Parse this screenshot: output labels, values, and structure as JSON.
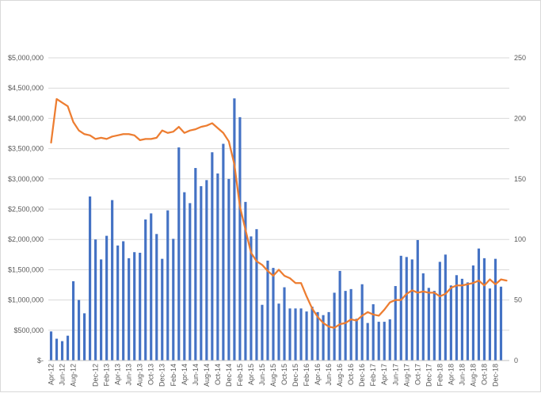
{
  "chart_data": {
    "type": "bar+line",
    "title": "",
    "xlabel": "",
    "ylabel": "",
    "y_left_ticks": [
      "$-",
      "$500,000",
      "$1,000,000",
      "$1,500,000",
      "$2,000,000",
      "$2,500,000",
      "$3,000,000",
      "$3,500,000",
      "$4,000,000",
      "$4,500,000",
      "$5,000,000"
    ],
    "y_left_range": [
      0,
      5000000
    ],
    "y_right_ticks": [
      "0",
      "50",
      "100",
      "150",
      "200",
      "250"
    ],
    "y_right_range": [
      0,
      250
    ],
    "grid": true,
    "legend": "none",
    "bar_color": "#4472c4",
    "line_color": "#ed7d31",
    "x_tick_labels": [
      {
        "index": 0,
        "label": "Apr-12"
      },
      {
        "index": 2,
        "label": "Jun-12"
      },
      {
        "index": 4,
        "label": "Aug-12"
      },
      {
        "index": 8,
        "label": "Dec-12"
      },
      {
        "index": 10,
        "label": "Feb-13"
      },
      {
        "index": 12,
        "label": "Apr-13"
      },
      {
        "index": 14,
        "label": "Jun-13"
      },
      {
        "index": 16,
        "label": "Aug-13"
      },
      {
        "index": 18,
        "label": "Oct-13"
      },
      {
        "index": 20,
        "label": "Dec-13"
      },
      {
        "index": 22,
        "label": "Feb-14"
      },
      {
        "index": 24,
        "label": "Apr-14"
      },
      {
        "index": 26,
        "label": "Jun-14"
      },
      {
        "index": 28,
        "label": "Aug-14"
      },
      {
        "index": 30,
        "label": "Oct-14"
      },
      {
        "index": 32,
        "label": "Dec-14"
      },
      {
        "index": 34,
        "label": "Feb-15"
      },
      {
        "index": 36,
        "label": "Apr-15"
      },
      {
        "index": 38,
        "label": "Jun-15"
      },
      {
        "index": 40,
        "label": "Aug-15"
      },
      {
        "index": 42,
        "label": "Oct-15"
      },
      {
        "index": 44,
        "label": "Dec-15"
      },
      {
        "index": 46,
        "label": "Feb-16"
      },
      {
        "index": 48,
        "label": "Apr-16"
      },
      {
        "index": 50,
        "label": "Jun-16"
      },
      {
        "index": 52,
        "label": "Aug-16"
      },
      {
        "index": 54,
        "label": "Oct-16"
      },
      {
        "index": 56,
        "label": "Dec-16"
      },
      {
        "index": 58,
        "label": "Feb-17"
      },
      {
        "index": 60,
        "label": "Apr-17"
      },
      {
        "index": 62,
        "label": "Jun-17"
      },
      {
        "index": 64,
        "label": "Aug-17"
      },
      {
        "index": 66,
        "label": "Oct-17"
      },
      {
        "index": 68,
        "label": "Dec-17"
      },
      {
        "index": 70,
        "label": "Feb-18"
      },
      {
        "index": 72,
        "label": "Apr-18"
      },
      {
        "index": 74,
        "label": "Jun-18"
      },
      {
        "index": 76,
        "label": "Aug-18"
      },
      {
        "index": 78,
        "label": "Oct-18"
      },
      {
        "index": 80,
        "label": "Dec-18"
      }
    ],
    "series": [
      {
        "type": "bar",
        "axis": "left",
        "values": [
          480000,
          360000,
          320000,
          410000,
          1310000,
          1000000,
          780000,
          2710000,
          2000000,
          1670000,
          2060000,
          2650000,
          1900000,
          1970000,
          1690000,
          1790000,
          1780000,
          2330000,
          2430000,
          2090000,
          1680000,
          2480000,
          2010000,
          3520000,
          2780000,
          2600000,
          3180000,
          2880000,
          2980000,
          3440000,
          3090000,
          3580000,
          3000000,
          4330000,
          4020000,
          2620000,
          2050000,
          2170000,
          920000,
          1650000,
          1530000,
          940000,
          1210000,
          860000,
          860000,
          860000,
          810000,
          890000,
          800000,
          750000,
          800000,
          1120000,
          1480000,
          1150000,
          1180000,
          690000,
          1260000,
          620000,
          930000,
          640000,
          640000,
          680000,
          1230000,
          1730000,
          1710000,
          1670000,
          1990000,
          1440000,
          1200000,
          1150000,
          1630000,
          1750000,
          1240000,
          1410000,
          1350000,
          1290000,
          1570000,
          1850000,
          1690000,
          1190000,
          1680000,
          1220000
        ]
      },
      {
        "type": "line",
        "axis": "right",
        "values": [
          180,
          216,
          213,
          210,
          197,
          190,
          187,
          186,
          183,
          184,
          183,
          185,
          186,
          187,
          187,
          186,
          182,
          183,
          183,
          184,
          190,
          188,
          189,
          193,
          188,
          190,
          191,
          193,
          194,
          196,
          192,
          188,
          181,
          162,
          127,
          108,
          89,
          82,
          79,
          74,
          70,
          75,
          70,
          68,
          64,
          64,
          53,
          43,
          36,
          31,
          28,
          27,
          30,
          31,
          34,
          33,
          37,
          40,
          38,
          37,
          42,
          48,
          50,
          50,
          55,
          58,
          56,
          57,
          56,
          56,
          53,
          55,
          60,
          62,
          62,
          63,
          64,
          66,
          62,
          67,
          63,
          67,
          66
        ]
      }
    ]
  }
}
